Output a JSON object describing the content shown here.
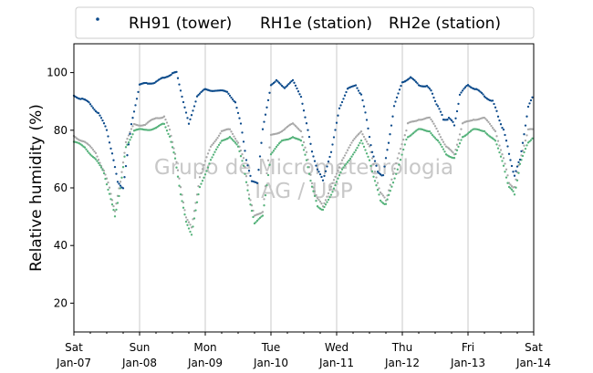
{
  "chart_data": {
    "type": "scatter",
    "title": "",
    "xlabel": "",
    "ylabel": "Relative humidity (%)",
    "watermark": [
      "Grupo de Micrometeorologia",
      "IAG / USP"
    ],
    "legend": {
      "placement": "top",
      "entries": [
        "RH91 (tower)",
        "RH1e (station)",
        "RH2e (station)"
      ]
    },
    "x_range": [
      "2024-01-07T00:00",
      "2024-01-14T00:00"
    ],
    "ylim": [
      10,
      110
    ],
    "y_ticks": [
      20,
      40,
      60,
      80,
      100
    ],
    "grid": {
      "x": true,
      "y": false
    },
    "x_ticks": [
      {
        "weekday": "Sat",
        "date": "Jan-07"
      },
      {
        "weekday": "Sun",
        "date": "Jan-08"
      },
      {
        "weekday": "Mon",
        "date": "Jan-09"
      },
      {
        "weekday": "Tue",
        "date": "Jan-10"
      },
      {
        "weekday": "Wed",
        "date": "Jan-11"
      },
      {
        "weekday": "Thu",
        "date": "Jan-12"
      },
      {
        "weekday": "Fri",
        "date": "Jan-13"
      },
      {
        "weekday": "Sat",
        "date": "Jan-14"
      }
    ],
    "series": [
      {
        "name": "RH91 (tower)",
        "color": "#0b4a8b",
        "x": [
          "2024-01-07T00:00",
          "2024-01-07T03:00",
          "2024-01-07T06:00",
          "2024-01-07T09:00",
          "2024-01-07T12:00",
          "2024-01-07T14:00",
          "2024-01-07T16:00",
          "2024-01-07T18:00",
          "2024-01-07T21:00",
          "2024-01-08T00:00",
          "2024-01-08T03:00",
          "2024-01-08T06:00",
          "2024-01-08T09:00",
          "2024-01-08T12:00",
          "2024-01-08T13:30",
          "2024-01-08T16:00",
          "2024-01-08T18:00",
          "2024-01-08T21:00",
          "2024-01-09T00:00",
          "2024-01-09T04:00",
          "2024-01-09T08:00",
          "2024-01-09T11:00",
          "2024-01-09T13:00",
          "2024-01-09T15:00",
          "2024-01-09T17:00",
          "2024-01-09T19:00",
          "2024-01-09T21:00",
          "2024-01-10T00:00",
          "2024-01-10T02:00",
          "2024-01-10T05:00",
          "2024-01-10T08:00",
          "2024-01-10T11:00",
          "2024-01-10T13:00",
          "2024-01-10T15:00",
          "2024-01-10T17:00",
          "2024-01-10T19:00",
          "2024-01-10T22:00",
          "2024-01-11T01:00",
          "2024-01-11T04:00",
          "2024-01-11T07:00",
          "2024-01-11T09:00",
          "2024-01-11T11:00",
          "2024-01-11T13:00",
          "2024-01-11T15:00",
          "2024-01-11T17:00",
          "2024-01-11T19:00",
          "2024-01-11T21:00",
          "2024-01-12T00:00",
          "2024-01-12T03:00",
          "2024-01-12T06:00",
          "2024-01-12T09:00",
          "2024-01-12T11:00",
          "2024-01-12T13:00",
          "2024-01-12T15:00",
          "2024-01-12T17:00",
          "2024-01-12T19:00",
          "2024-01-12T21:00",
          "2024-01-13T00:00",
          "2024-01-13T03:00",
          "2024-01-13T06:00",
          "2024-01-13T09:00",
          "2024-01-13T11:00",
          "2024-01-13T13:00",
          "2024-01-13T15:00",
          "2024-01-13T17:00",
          "2024-01-13T19:00",
          "2024-01-13T22:00",
          "2024-01-14T00:00"
        ],
        "y": [
          92,
          91,
          89,
          86,
          80,
          72,
          62,
          60,
          82,
          96,
          96,
          97,
          98,
          100,
          100,
          90,
          82,
          92,
          94,
          94,
          93,
          90,
          82,
          70,
          62,
          62,
          80,
          96,
          97,
          95,
          97,
          92,
          82,
          73,
          66,
          63,
          72,
          88,
          94,
          96,
          92,
          84,
          72,
          66,
          64,
          76,
          88,
          97,
          98,
          96,
          95,
          93,
          88,
          84,
          84,
          82,
          92,
          96,
          94,
          92,
          90,
          85,
          80,
          72,
          64,
          70,
          88,
          92
        ]
      },
      {
        "name": "RH1e (station)",
        "color": "#54b27a",
        "x": [
          "2024-01-07T00:00",
          "2024-01-07T04:00",
          "2024-01-07T08:00",
          "2024-01-07T11:00",
          "2024-01-07T13:00",
          "2024-01-07T15:00",
          "2024-01-07T17:00",
          "2024-01-07T19:00",
          "2024-01-07T22:00",
          "2024-01-08T02:00",
          "2024-01-08T06:00",
          "2024-01-08T09:00",
          "2024-01-08T11:00",
          "2024-01-08T13:00",
          "2024-01-08T15:00",
          "2024-01-08T17:00",
          "2024-01-08T19:00",
          "2024-01-08T22:00",
          "2024-01-09T02:00",
          "2024-01-09T06:00",
          "2024-01-09T09:00",
          "2024-01-09T12:00",
          "2024-01-09T14:00",
          "2024-01-09T16:00",
          "2024-01-09T18:00",
          "2024-01-09T21:00",
          "2024-01-10T00:00",
          "2024-01-10T04:00",
          "2024-01-10T08:00",
          "2024-01-10T11:00",
          "2024-01-10T13:00",
          "2024-01-10T15:00",
          "2024-01-10T17:00",
          "2024-01-10T19:00",
          "2024-01-10T22:00",
          "2024-01-11T02:00",
          "2024-01-11T06:00",
          "2024-01-11T09:00",
          "2024-01-11T12:00",
          "2024-01-11T14:00",
          "2024-01-11T16:00",
          "2024-01-11T18:00",
          "2024-01-12T02:00",
          "2024-01-12T06:00",
          "2024-01-12T10:00",
          "2024-01-12T13:00",
          "2024-01-12T16:00",
          "2024-01-12T19:00",
          "2024-01-12T22:00",
          "2024-01-13T02:00",
          "2024-01-13T06:00",
          "2024-01-13T10:00",
          "2024-01-13T13:00",
          "2024-01-13T15:00",
          "2024-01-13T17:00",
          "2024-01-13T19:00",
          "2024-01-13T22:00",
          "2024-01-14T00:00"
        ],
        "y": [
          76,
          74,
          70,
          65,
          58,
          50,
          60,
          74,
          80,
          80,
          81,
          82,
          78,
          70,
          58,
          48,
          44,
          60,
          70,
          76,
          78,
          74,
          68,
          56,
          48,
          50,
          72,
          76,
          78,
          76,
          70,
          60,
          54,
          52,
          58,
          66,
          72,
          76,
          70,
          62,
          56,
          54,
          78,
          80,
          80,
          76,
          72,
          70,
          78,
          80,
          80,
          76,
          68,
          60,
          58,
          68,
          76,
          78
        ]
      },
      {
        "name": "RH2e (station)",
        "color": "#a8a8a8",
        "x": [
          "2024-01-07T00:00",
          "2024-01-07T04:00",
          "2024-01-07T08:00",
          "2024-01-07T11:00",
          "2024-01-07T13:00",
          "2024-01-07T15:00",
          "2024-01-07T17:00",
          "2024-01-07T19:00",
          "2024-01-07T22:00",
          "2024-01-08T02:00",
          "2024-01-08T06:00",
          "2024-01-08T09:00",
          "2024-01-08T11:00",
          "2024-01-08T13:00",
          "2024-01-08T15:00",
          "2024-01-08T17:00",
          "2024-01-08T19:00",
          "2024-01-08T22:00",
          "2024-01-09T02:00",
          "2024-01-09T06:00",
          "2024-01-09T09:00",
          "2024-01-09T12:00",
          "2024-01-09T14:00",
          "2024-01-09T16:00",
          "2024-01-09T18:00",
          "2024-01-09T21:00",
          "2024-01-10T00:00",
          "2024-01-10T04:00",
          "2024-01-10T08:00",
          "2024-01-10T11:00",
          "2024-01-10T13:00",
          "2024-01-10T15:00",
          "2024-01-10T17:00",
          "2024-01-10T19:00",
          "2024-01-10T22:00",
          "2024-01-11T02:00",
          "2024-01-11T06:00",
          "2024-01-11T09:00",
          "2024-01-11T12:00",
          "2024-01-11T14:00",
          "2024-01-11T16:00",
          "2024-01-11T18:00",
          "2024-01-12T02:00",
          "2024-01-12T06:00",
          "2024-01-12T10:00",
          "2024-01-12T13:00",
          "2024-01-12T16:00",
          "2024-01-12T19:00",
          "2024-01-12T22:00",
          "2024-01-13T02:00",
          "2024-01-13T06:00",
          "2024-01-13T10:00",
          "2024-01-13T13:00",
          "2024-01-13T15:00",
          "2024-01-13T17:00",
          "2024-01-13T19:00",
          "2024-01-13T22:00",
          "2024-01-14T00:00"
        ],
        "y": [
          78,
          76,
          72,
          66,
          60,
          52,
          62,
          76,
          82,
          82,
          84,
          85,
          80,
          72,
          60,
          50,
          46,
          64,
          74,
          80,
          80,
          76,
          70,
          58,
          50,
          52,
          78,
          80,
          82,
          80,
          72,
          62,
          56,
          54,
          60,
          70,
          76,
          80,
          74,
          66,
          58,
          56,
          82,
          84,
          84,
          80,
          74,
          72,
          82,
          84,
          84,
          80,
          70,
          62,
          60,
          70,
          80,
          80
        ]
      }
    ]
  }
}
